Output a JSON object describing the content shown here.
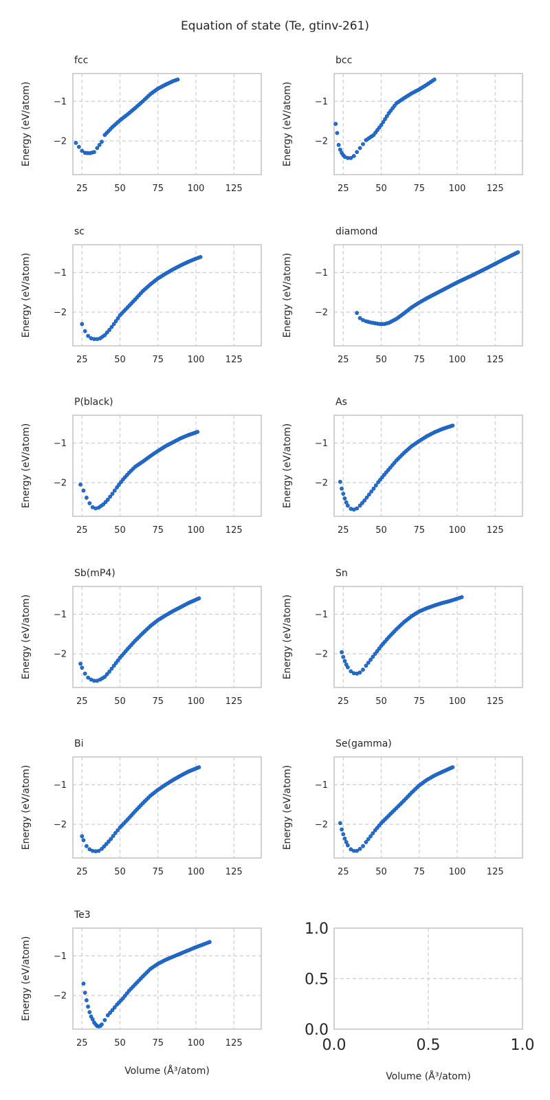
{
  "figure": {
    "title": "Equation of state (Te, gtinv-261)",
    "xlabel": "Volume (Å³/atom)",
    "ylabel": "Energy (eV/atom)",
    "marker_color": "#1f6fd6",
    "marker_edge": "#154f9e",
    "grid_color": "#cccccc",
    "spine_color": "#cccccc"
  },
  "chart_data": [
    {
      "type": "scatter",
      "title": "fcc",
      "xlabel": "",
      "ylabel": "Energy (eV/atom)",
      "xlim": [
        19,
        143
      ],
      "ylim": [
        -2.85,
        -0.3
      ],
      "xticks": [
        25,
        50,
        75,
        100,
        125
      ],
      "yticks": [
        -1,
        -2
      ],
      "grid": true,
      "x": [
        21,
        23,
        25,
        27,
        30,
        33,
        35,
        38,
        40,
        45,
        50,
        55,
        60,
        65,
        70,
        75,
        80,
        85,
        88
      ],
      "y": [
        -2.05,
        -2.15,
        -2.25,
        -2.3,
        -2.31,
        -2.28,
        -2.18,
        -2.02,
        -1.85,
        -1.65,
        -1.48,
        -1.33,
        -1.17,
        -1.0,
        -0.82,
        -0.68,
        -0.58,
        -0.49,
        -0.45
      ]
    },
    {
      "type": "scatter",
      "title": "bcc",
      "xlabel": "",
      "ylabel": "Energy (eV/atom)",
      "xlim": [
        19,
        143
      ],
      "ylim": [
        -2.85,
        -0.3
      ],
      "xticks": [
        25,
        50,
        75,
        100,
        125
      ],
      "yticks": [
        -1,
        -2
      ],
      "grid": true,
      "x": [
        20,
        21,
        22,
        23,
        24,
        25,
        26,
        28,
        30,
        32,
        34,
        36,
        38,
        40,
        45,
        50,
        55,
        60,
        65,
        70,
        75,
        80,
        85
      ],
      "y": [
        -1.57,
        -1.8,
        -2.1,
        -2.22,
        -2.3,
        -2.36,
        -2.4,
        -2.43,
        -2.43,
        -2.38,
        -2.28,
        -2.18,
        -2.08,
        -1.98,
        -1.85,
        -1.6,
        -1.3,
        -1.05,
        -0.92,
        -0.8,
        -0.7,
        -0.58,
        -0.45
      ]
    },
    {
      "type": "scatter",
      "title": "sc",
      "xlabel": "",
      "ylabel": "Energy (eV/atom)",
      "xlim": [
        19,
        143
      ],
      "ylim": [
        -2.85,
        -0.3
      ],
      "xticks": [
        25,
        50,
        75,
        100,
        125
      ],
      "yticks": [
        -1,
        -2
      ],
      "grid": true,
      "x": [
        25,
        27,
        29,
        31,
        33,
        35,
        37,
        40,
        43,
        46,
        50,
        55,
        60,
        65,
        70,
        75,
        80,
        85,
        90,
        95,
        100,
        103
      ],
      "y": [
        -2.3,
        -2.48,
        -2.6,
        -2.66,
        -2.68,
        -2.68,
        -2.66,
        -2.58,
        -2.45,
        -2.3,
        -2.08,
        -1.88,
        -1.68,
        -1.47,
        -1.3,
        -1.15,
        -1.03,
        -0.92,
        -0.82,
        -0.73,
        -0.65,
        -0.61
      ]
    },
    {
      "type": "scatter",
      "title": "diamond",
      "xlabel": "",
      "ylabel": "Energy (eV/atom)",
      "xlim": [
        19,
        143
      ],
      "ylim": [
        -2.85,
        -0.3
      ],
      "xticks": [
        25,
        50,
        75,
        100,
        125
      ],
      "yticks": [
        -1,
        -2
      ],
      "grid": true,
      "x": [
        34,
        36,
        38,
        40,
        43,
        46,
        49,
        52,
        55,
        60,
        65,
        70,
        75,
        80,
        90,
        100,
        110,
        120,
        130,
        140
      ],
      "y": [
        -2.02,
        -2.15,
        -2.2,
        -2.23,
        -2.26,
        -2.28,
        -2.3,
        -2.3,
        -2.27,
        -2.17,
        -2.03,
        -1.88,
        -1.76,
        -1.65,
        -1.45,
        -1.25,
        -1.07,
        -0.88,
        -0.68,
        -0.49
      ]
    },
    {
      "type": "scatter",
      "title": "P(black)",
      "xlabel": "",
      "ylabel": "Energy (eV/atom)",
      "xlim": [
        19,
        143
      ],
      "ylim": [
        -2.85,
        -0.3
      ],
      "xticks": [
        25,
        50,
        75,
        100,
        125
      ],
      "yticks": [
        -1,
        -2
      ],
      "grid": true,
      "x": [
        24,
        26,
        28,
        30,
        32,
        34,
        36,
        39,
        42,
        45,
        48,
        52,
        56,
        60,
        65,
        70,
        75,
        80,
        85,
        90,
        95,
        101
      ],
      "y": [
        -2.05,
        -2.2,
        -2.38,
        -2.52,
        -2.62,
        -2.65,
        -2.63,
        -2.55,
        -2.43,
        -2.28,
        -2.12,
        -1.92,
        -1.75,
        -1.6,
        -1.47,
        -1.33,
        -1.2,
        -1.08,
        -0.98,
        -0.88,
        -0.8,
        -0.72
      ]
    },
    {
      "type": "scatter",
      "title": "As",
      "xlabel": "",
      "ylabel": "Energy (eV/atom)",
      "xlim": [
        19,
        143
      ],
      "ylim": [
        -2.85,
        -0.3
      ],
      "xticks": [
        25,
        50,
        75,
        100,
        125
      ],
      "yticks": [
        -1,
        -2
      ],
      "grid": true,
      "x": [
        23,
        24,
        25,
        26,
        27,
        28,
        30,
        32,
        34,
        36,
        39,
        42,
        45,
        48,
        52,
        56,
        60,
        65,
        70,
        75,
        80,
        85,
        90,
        97
      ],
      "y": [
        -1.98,
        -2.15,
        -2.28,
        -2.4,
        -2.5,
        -2.58,
        -2.66,
        -2.68,
        -2.65,
        -2.58,
        -2.45,
        -2.3,
        -2.15,
        -1.99,
        -1.8,
        -1.62,
        -1.44,
        -1.25,
        -1.08,
        -0.95,
        -0.83,
        -0.73,
        -0.65,
        -0.56
      ]
    },
    {
      "type": "scatter",
      "title": "Sb(mP4)",
      "xlabel": "",
      "ylabel": "Energy (eV/atom)",
      "xlim": [
        19,
        143
      ],
      "ylim": [
        -2.85,
        -0.3
      ],
      "xticks": [
        25,
        50,
        75,
        100,
        125
      ],
      "yticks": [
        -1,
        -2
      ],
      "grid": true,
      "x": [
        24,
        25,
        27,
        29,
        31,
        33,
        35,
        37,
        40,
        43,
        46,
        50,
        55,
        60,
        65,
        70,
        75,
        80,
        85,
        90,
        95,
        102
      ],
      "y": [
        -2.25,
        -2.35,
        -2.5,
        -2.6,
        -2.65,
        -2.68,
        -2.68,
        -2.65,
        -2.58,
        -2.45,
        -2.3,
        -2.1,
        -1.88,
        -1.67,
        -1.48,
        -1.3,
        -1.15,
        -1.03,
        -0.92,
        -0.82,
        -0.72,
        -0.6
      ]
    },
    {
      "type": "scatter",
      "title": "Sn",
      "xlabel": "",
      "ylabel": "Energy (eV/atom)",
      "xlim": [
        19,
        143
      ],
      "ylim": [
        -2.85,
        -0.3
      ],
      "xticks": [
        25,
        50,
        75,
        100,
        125
      ],
      "yticks": [
        -1,
        -2
      ],
      "grid": true,
      "x": [
        24,
        25,
        26,
        27,
        28,
        30,
        32,
        34,
        36,
        38,
        40,
        43,
        46,
        50,
        55,
        60,
        65,
        70,
        75,
        80,
        85,
        90,
        95,
        100,
        103
      ],
      "y": [
        -1.96,
        -2.08,
        -2.18,
        -2.27,
        -2.34,
        -2.44,
        -2.49,
        -2.5,
        -2.47,
        -2.4,
        -2.3,
        -2.15,
        -2.0,
        -1.8,
        -1.58,
        -1.38,
        -1.2,
        -1.05,
        -0.93,
        -0.85,
        -0.78,
        -0.72,
        -0.67,
        -0.61,
        -0.57
      ]
    },
    {
      "type": "scatter",
      "title": "Bi",
      "xlabel": "",
      "ylabel": "Energy (eV/atom)",
      "xlim": [
        19,
        143
      ],
      "ylim": [
        -2.85,
        -0.3
      ],
      "xticks": [
        25,
        50,
        75,
        100,
        125
      ],
      "yticks": [
        -1,
        -2
      ],
      "grid": true,
      "x": [
        25,
        26,
        28,
        30,
        32,
        34,
        36,
        38,
        41,
        44,
        47,
        50,
        55,
        60,
        65,
        70,
        75,
        80,
        85,
        90,
        95,
        102
      ],
      "y": [
        -2.3,
        -2.4,
        -2.55,
        -2.63,
        -2.67,
        -2.68,
        -2.67,
        -2.62,
        -2.5,
        -2.37,
        -2.22,
        -2.08,
        -1.88,
        -1.67,
        -1.47,
        -1.28,
        -1.13,
        -1.0,
        -0.88,
        -0.77,
        -0.67,
        -0.56
      ]
    },
    {
      "type": "scatter",
      "title": "Se(gamma)",
      "xlabel": "",
      "ylabel": "Energy (eV/atom)",
      "xlim": [
        19,
        143
      ],
      "ylim": [
        -2.85,
        -0.3
      ],
      "xticks": [
        25,
        50,
        75,
        100,
        125
      ],
      "yticks": [
        -1,
        -2
      ],
      "grid": true,
      "x": [
        23,
        24,
        25,
        26,
        27,
        28,
        30,
        32,
        34,
        36,
        38,
        40,
        43,
        46,
        50,
        55,
        60,
        65,
        70,
        75,
        80,
        85,
        90,
        97
      ],
      "y": [
        -1.97,
        -2.13,
        -2.25,
        -2.36,
        -2.45,
        -2.53,
        -2.63,
        -2.67,
        -2.67,
        -2.62,
        -2.55,
        -2.45,
        -2.3,
        -2.15,
        -1.97,
        -1.78,
        -1.59,
        -1.4,
        -1.2,
        -1.02,
        -0.88,
        -0.77,
        -0.68,
        -0.56
      ]
    },
    {
      "type": "scatter",
      "title": "Te3",
      "xlabel": "Volume (Å³/atom)",
      "ylabel": "Energy (eV/atom)",
      "xlim": [
        19,
        143
      ],
      "ylim": [
        -2.85,
        -0.3
      ],
      "xticks": [
        25,
        50,
        75,
        100,
        125
      ],
      "yticks": [
        -1,
        -2
      ],
      "grid": true,
      "x": [
        26,
        27,
        28,
        29,
        30,
        31,
        32,
        33,
        34,
        35,
        36,
        37,
        38,
        40,
        42,
        45,
        48,
        52,
        56,
        60,
        65,
        70,
        75,
        80,
        85,
        90,
        95,
        100,
        105,
        109
      ],
      "y": [
        -1.7,
        -1.93,
        -2.12,
        -2.28,
        -2.42,
        -2.53,
        -2.6,
        -2.68,
        -2.73,
        -2.77,
        -2.78,
        -2.77,
        -2.73,
        -2.62,
        -2.5,
        -2.37,
        -2.23,
        -2.07,
        -1.88,
        -1.72,
        -1.52,
        -1.33,
        -1.2,
        -1.1,
        -1.02,
        -0.94,
        -0.86,
        -0.78,
        -0.71,
        -0.65
      ]
    },
    {
      "type": "scatter",
      "title": "",
      "xlabel": "Volume (Å³/atom)",
      "ylabel": "",
      "xlim": [
        0,
        1
      ],
      "ylim": [
        0,
        1
      ],
      "xticks": [
        0,
        0.5,
        1
      ],
      "xtick_labels": [
        "0.0",
        "0.5",
        "1.0"
      ],
      "yticks": [
        0,
        0.5,
        1
      ],
      "ytick_labels": [
        "0.0",
        "0.5",
        "1.0"
      ],
      "grid": true,
      "empty": true,
      "large_ticks": true,
      "x": [],
      "y": []
    }
  ]
}
